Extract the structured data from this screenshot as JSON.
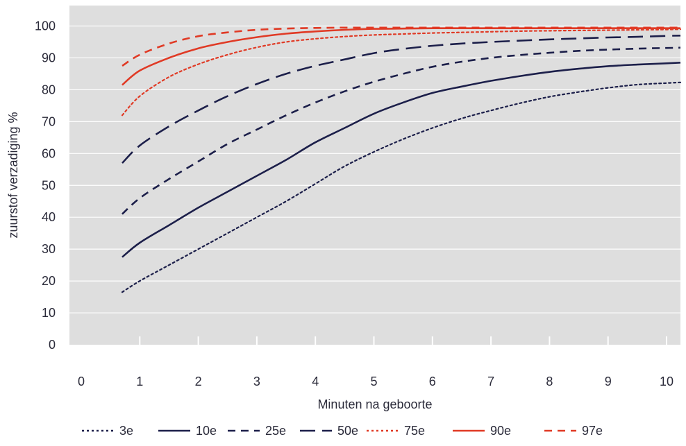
{
  "chart_data": {
    "type": "line",
    "title": "",
    "xlabel": "Minuten na geboorte",
    "ylabel": "zuurstof verzadiging %",
    "xlim": [
      0,
      10.2
    ],
    "ylim": [
      0,
      100
    ],
    "x_ticks": [
      0,
      1,
      2,
      3,
      4,
      5,
      6,
      7,
      8,
      9,
      10
    ],
    "y_ticks": [
      0,
      10,
      20,
      30,
      40,
      50,
      60,
      70,
      80,
      90,
      100
    ],
    "grid": "horizontal",
    "legend_position": "bottom",
    "background": "#dedede",
    "x": [
      0.7,
      1,
      1.5,
      2,
      2.5,
      3,
      3.5,
      4,
      4.5,
      5,
      5.5,
      6,
      6.5,
      7,
      7.5,
      8,
      8.5,
      9,
      9.5,
      10,
      10.3
    ],
    "series": [
      {
        "name": "3e",
        "color": "#1c1f4a",
        "dash": "dotted",
        "values": [
          16.5,
          20,
          25,
          30,
          35,
          40,
          45,
          50.5,
          56,
          60.5,
          64.5,
          68,
          71,
          73.5,
          75.8,
          77.8,
          79.3,
          80.6,
          81.6,
          82.1,
          82.3
        ]
      },
      {
        "name": "10e",
        "color": "#1c1f4a",
        "dash": "solid",
        "values": [
          27.5,
          32,
          37.5,
          43,
          48,
          53,
          58,
          63.5,
          68,
          72.5,
          76,
          79,
          81,
          82.8,
          84.3,
          85.6,
          86.6,
          87.4,
          87.9,
          88.3,
          88.5
        ]
      },
      {
        "name": "25e",
        "color": "#1c1f4a",
        "dash": "short",
        "values": [
          41,
          46,
          52,
          57.5,
          63,
          67.5,
          72,
          76,
          79.5,
          82.5,
          85,
          87.2,
          88.8,
          90,
          90.9,
          91.6,
          92.2,
          92.6,
          92.9,
          93.1,
          93.2
        ]
      },
      {
        "name": "50e",
        "color": "#1c1f4a",
        "dash": "long",
        "values": [
          57,
          62.5,
          68.5,
          73.5,
          78,
          81.8,
          85,
          87.5,
          89.5,
          91.5,
          92.8,
          93.8,
          94.5,
          95,
          95.4,
          95.8,
          96.1,
          96.4,
          96.6,
          96.9,
          97
        ]
      },
      {
        "name": "75e",
        "color": "#e03a25",
        "dash": "dotted",
        "values": [
          72,
          78,
          84,
          88,
          91,
          93.3,
          95,
          96,
          96.7,
          97.2,
          97.5,
          97.8,
          98,
          98.2,
          98.4,
          98.5,
          98.6,
          98.7,
          98.8,
          98.9,
          99
        ]
      },
      {
        "name": "90e",
        "color": "#e03a25",
        "dash": "solid",
        "values": [
          81.5,
          86,
          90,
          93,
          95,
          96.5,
          97.6,
          98.3,
          98.8,
          99.1,
          99.2,
          99.3,
          99.3,
          99.3,
          99.3,
          99.3,
          99.3,
          99.3,
          99.3,
          99.3,
          99.3
        ]
      },
      {
        "name": "97e",
        "color": "#e03a25",
        "dash": "short",
        "values": [
          87.5,
          91,
          94.5,
          96.8,
          98,
          98.8,
          99.2,
          99.4,
          99.5,
          99.5,
          99.5,
          99.5,
          99.5,
          99.5,
          99.5,
          99.5,
          99.5,
          99.5,
          99.5,
          99.5,
          99.5
        ]
      }
    ]
  }
}
